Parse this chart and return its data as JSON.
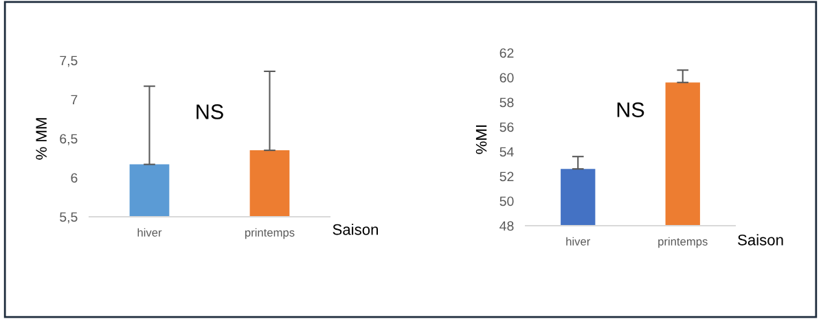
{
  "chart_data": [
    {
      "type": "bar",
      "xlabel": "Saison",
      "ylabel": "% MM",
      "categories": [
        "hiver",
        "printemps"
      ],
      "values": [
        6.17,
        6.35
      ],
      "colors": [
        "#5b9bd5",
        "#ed7d31"
      ],
      "errors": [
        [
          6.17,
          7.17
        ],
        [
          6.35,
          7.36
        ]
      ],
      "ylim": [
        5.5,
        7.5
      ],
      "yticks": [
        {
          "value": 5.5,
          "label": "5,5"
        },
        6,
        {
          "value": 6.5,
          "label": "6,5"
        },
        7,
        {
          "value": 7.5,
          "label": "7,5"
        }
      ],
      "grid": false,
      "annotations": [
        "NS"
      ]
    },
    {
      "type": "bar",
      "xlabel": "Saison",
      "ylabel": "%MI",
      "categories": [
        "hiver",
        "printemps"
      ],
      "values": [
        52.6,
        59.6
      ],
      "colors": [
        "#4472c4",
        "#ed7d31"
      ],
      "errors": [
        [
          52.6,
          53.6
        ],
        [
          59.6,
          60.6
        ]
      ],
      "ylim": [
        48,
        62
      ],
      "yticks": [
        48,
        50,
        52,
        54,
        56,
        58,
        60,
        62
      ],
      "grid": false,
      "annotations": [
        "NS"
      ]
    }
  ]
}
